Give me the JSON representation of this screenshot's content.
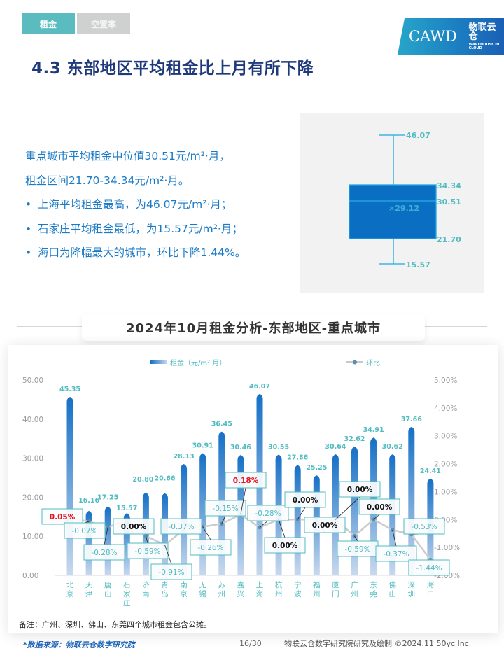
{
  "tabs": [
    {
      "label": "租金",
      "active": true
    },
    {
      "label": "空置率",
      "active": false
    }
  ],
  "logo": {
    "left": "CAWD",
    "right": "物联云仓",
    "right_sub": "WAREHOUSE IN CLOUD"
  },
  "page_title": "4.3 东部地区平均租金比上月有所下降",
  "summary": {
    "line1": "重点城市平均租金中位值30.51元/m²·月，",
    "line2": "租金区间21.70-34.34元/m²·月。",
    "bullets": [
      "上海平均租金最高，为46.07元/m²·月；",
      "石家庄平均租金最低，为15.57元/m²·月；",
      "海口为降幅最大的城市，环比下降1.44%。"
    ]
  },
  "chart_title": "2024年10月租金分析-东部地区-重点城市",
  "colors": {
    "accent_teal": "#5bbcbf",
    "bar_blue": "#1e78c8",
    "title_navy": "#1f3a7a",
    "text_blue": "#1a7ac6",
    "positive_red": "#e8141e",
    "line_grey": "#cccccc"
  },
  "chart_data": [
    {
      "type": "box",
      "title": "",
      "max": 46.07,
      "q3": 34.34,
      "median": 30.51,
      "mean": 29.12,
      "q1": 21.7,
      "min": 15.57,
      "labels": {
        "max": "46.07",
        "q3": "34.34",
        "median": "30.51",
        "mean": "×29.12",
        "q1": "21.70",
        "min": "15.57"
      }
    },
    {
      "type": "bar+line",
      "title": "2024年10月租金分析-东部地区-重点城市",
      "legend": [
        "租金（元/m²·月）",
        "环比"
      ],
      "legend_position": "top",
      "categories": [
        "北京",
        "天津",
        "唐山",
        "石家庄",
        "济南",
        "青岛",
        "南京",
        "无锡",
        "苏州",
        "嘉兴",
        "上海",
        "杭州",
        "宁波",
        "福州",
        "厦门",
        "广州",
        "东莞",
        "佛山",
        "深圳",
        "海口"
      ],
      "series": [
        {
          "name": "租金（元/m²·月）",
          "axis": "left",
          "type": "bar",
          "values": [
            45.35,
            16.16,
            17.25,
            15.57,
            20.8,
            20.66,
            28.13,
            30.91,
            36.45,
            30.46,
            46.07,
            30.55,
            27.86,
            25.25,
            30.64,
            32.62,
            34.91,
            30.62,
            37.66,
            24.41
          ],
          "labels": [
            "45.35",
            "16.16",
            "17.25",
            "15.57",
            "20.80",
            "20.66",
            "28.13",
            "30.91",
            "36.45",
            "30.46",
            "46.07",
            "30.55",
            "27.86",
            "25.25",
            "30.64",
            "32.62",
            "34.91",
            "30.62",
            "37.66",
            "24.41"
          ]
        },
        {
          "name": "环比",
          "axis": "right",
          "type": "line",
          "unit": "%",
          "values": [
            0.05,
            -0.07,
            -0.28,
            0.0,
            -0.59,
            -0.91,
            -0.37,
            -0.26,
            -0.15,
            0.18,
            -0.28,
            0.0,
            0.0,
            0.0,
            0.0,
            -0.59,
            0.0,
            -0.37,
            -0.53,
            -1.44
          ],
          "labels": [
            "0.05%",
            "-0.07%",
            "-0.28%",
            "0.00%",
            "-0.59%",
            "-0.91%",
            "-0.37%",
            "-0.26%",
            "-0.15%",
            "0.18%",
            "-0.28%",
            "0.00%",
            "0.00%",
            "0.00%",
            "0.00%",
            "-0.59%",
            "0.00%",
            "-0.37%",
            "-0.53%",
            "-1.44%"
          ]
        }
      ],
      "left_axis": {
        "ticks": [
          "0.00",
          "10.00",
          "20.00",
          "30.00",
          "40.00",
          "50.00"
        ],
        "ylim": [
          0,
          50
        ]
      },
      "right_axis": {
        "ticks": [
          "-2.00%",
          "-1.00%",
          "0.00%",
          "1.00%",
          "2.00%",
          "3.00%",
          "4.00%",
          "5.00%"
        ],
        "ylim": [
          -2,
          5
        ]
      },
      "grid": false
    }
  ],
  "note": "备注：广州、深圳、佛山、东莞四个城市租金包含公摊。",
  "footer": {
    "source": "*数据来源：物联云仓数字研究院",
    "page": "16/30",
    "credit": "物联云仓数字研究院研究及绘制   ©2024.11 50yc Inc."
  }
}
